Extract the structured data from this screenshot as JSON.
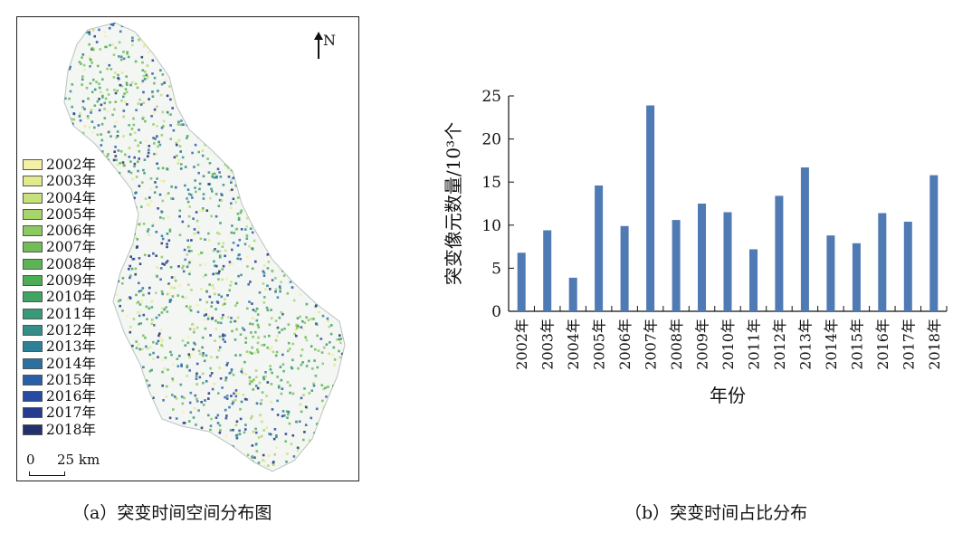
{
  "map_panel": {
    "north_label": "N",
    "legend": [
      {
        "label": "2002年",
        "color": "#f4f0a6"
      },
      {
        "label": "2003年",
        "color": "#e2ea8c"
      },
      {
        "label": "2004年",
        "color": "#c6e07a"
      },
      {
        "label": "2005年",
        "color": "#a8d46c"
      },
      {
        "label": "2006年",
        "color": "#8cc960"
      },
      {
        "label": "2007年",
        "color": "#72bd58"
      },
      {
        "label": "2008年",
        "color": "#5cb454"
      },
      {
        "label": "2009年",
        "color": "#4cad56"
      },
      {
        "label": "2010年",
        "color": "#42a464"
      },
      {
        "label": "2011年",
        "color": "#3a9a78"
      },
      {
        "label": "2012年",
        "color": "#348e88"
      },
      {
        "label": "2013年",
        "color": "#2e8096"
      },
      {
        "label": "2014年",
        "color": "#2b70a0"
      },
      {
        "label": "2015年",
        "color": "#2a5ea6"
      },
      {
        "label": "2016年",
        "color": "#284aa0"
      },
      {
        "label": "2017年",
        "color": "#263a8e"
      },
      {
        "label": "2018年",
        "color": "#22306c"
      }
    ],
    "scale_zero": "0",
    "scale_distance": "25 km",
    "caption": "（a）突变时间空间分布图"
  },
  "chart_data": {
    "type": "bar",
    "categories": [
      "2002年",
      "2003年",
      "2004年",
      "2005年",
      "2006年",
      "2007年",
      "2008年",
      "2009年",
      "2010年",
      "2011年",
      "2012年",
      "2013年",
      "2014年",
      "2015年",
      "2016年",
      "2017年",
      "2018年"
    ],
    "values": [
      6.8,
      9.4,
      3.9,
      14.6,
      9.9,
      23.9,
      10.6,
      12.5,
      11.5,
      7.2,
      13.4,
      16.7,
      8.8,
      7.9,
      11.4,
      10.4,
      15.8
    ],
    "xlabel": "年份",
    "ylabel": "突变像元数量/10³个",
    "ylim": [
      0,
      25
    ],
    "yticks": [
      0,
      5,
      10,
      15,
      20,
      25
    ],
    "bar_color": "#4f7ab3",
    "grid": false,
    "caption": "（b）突变时间占比分布"
  }
}
